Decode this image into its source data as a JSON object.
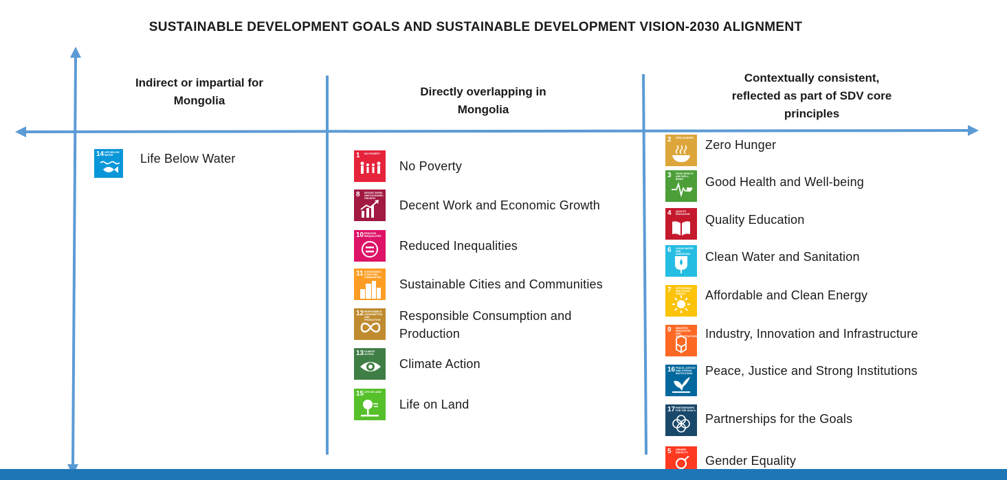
{
  "title": "SUSTAINABLE DEVELOPMENT GOALS AND SUSTAINABLE DEVELOPMENT VISION-2030 ALIGNMENT",
  "columns": [
    {
      "heading": [
        "Indirect or impartial for",
        "Mongolia"
      ],
      "items": [
        {
          "num": "14",
          "caption": "LIFE BELOW WATER",
          "label": "Life Below Water",
          "color": "#0a97d9",
          "icon": "fish-icon"
        }
      ]
    },
    {
      "heading": [
        "Directly overlapping in",
        "Mongolia"
      ],
      "items": [
        {
          "num": "1",
          "caption": "NO POVERTY",
          "label": "No Poverty",
          "color": "#e5243b",
          "icon": "family-icon"
        },
        {
          "num": "8",
          "caption": "DECENT WORK AND ECONOMIC GROWTH",
          "label": "Decent Work and Economic Growth",
          "color": "#a21942",
          "icon": "growth-chart-icon"
        },
        {
          "num": "10",
          "caption": "REDUCED INEQUALITIES",
          "label": "Reduced Inequalities",
          "color": "#dd1367",
          "icon": "equals-icon"
        },
        {
          "num": "11",
          "caption": "SUSTAINABLE CITIES AND COMMUNITIES",
          "label": "Sustainable Cities and Communities",
          "color": "#fd9d24",
          "icon": "buildings-icon"
        },
        {
          "num": "12",
          "caption": "RESPONSIBLE CONSUMPTION AND PRODUCTION",
          "label": "Responsible Consumption and Production",
          "color": "#bf8b2e",
          "icon": "infinity-icon"
        },
        {
          "num": "13",
          "caption": "CLIMATE ACTION",
          "label": "Climate Action",
          "color": "#3f7e44",
          "icon": "eye-globe-icon"
        },
        {
          "num": "15",
          "caption": "LIFE ON LAND",
          "label": "Life on Land",
          "color": "#56c02b",
          "icon": "tree-icon"
        }
      ]
    },
    {
      "heading": [
        "Contextually consistent,",
        "reflected as part of SDV core",
        "principles"
      ],
      "items": [
        {
          "num": "2",
          "caption": "ZERO HUNGER",
          "label": "Zero Hunger",
          "color": "#dda63a",
          "icon": "bowl-icon"
        },
        {
          "num": "3",
          "caption": "GOOD HEALTH AND WELL-BEING",
          "label": "Good Health and Well-being",
          "color": "#4c9f38",
          "icon": "heartbeat-icon"
        },
        {
          "num": "4",
          "caption": "QUALITY EDUCATION",
          "label": "Quality Education",
          "color": "#c5192d",
          "icon": "book-icon"
        },
        {
          "num": "6",
          "caption": "CLEAN WATER AND SANITATION",
          "label": "Clean Water and Sanitation",
          "color": "#26bde2",
          "icon": "water-drop-icon"
        },
        {
          "num": "7",
          "caption": "AFFORDABLE AND CLEAN ENERGY",
          "label": "Affordable and Clean Energy",
          "color": "#fcc30b",
          "icon": "sun-icon"
        },
        {
          "num": "9",
          "caption": "INDUSTRY, INNOVATION AND INFRASTRUCTURE",
          "label": "Industry, Innovation and Infrastructure",
          "color": "#fd6925",
          "icon": "cubes-icon"
        },
        {
          "num": "16",
          "caption": "PEACE, JUSTICE AND STRONG INSTITUTIONS",
          "label": "Peace, Justice and Strong Institutions",
          "color": "#00689d",
          "icon": "dove-icon"
        },
        {
          "num": "17",
          "caption": "PARTNERSHIPS FOR THE GOALS",
          "label": "Partnerships for the Goals",
          "color": "#19486a",
          "icon": "rings-icon"
        },
        {
          "num": "5",
          "caption": "GENDER EQUALITY",
          "label": "Gender Equality",
          "color": "#ff3a21",
          "icon": "gender-icon"
        }
      ]
    }
  ],
  "colors": {
    "axis": "#5b9bd5",
    "bottom_bar": "#1f76b7"
  }
}
